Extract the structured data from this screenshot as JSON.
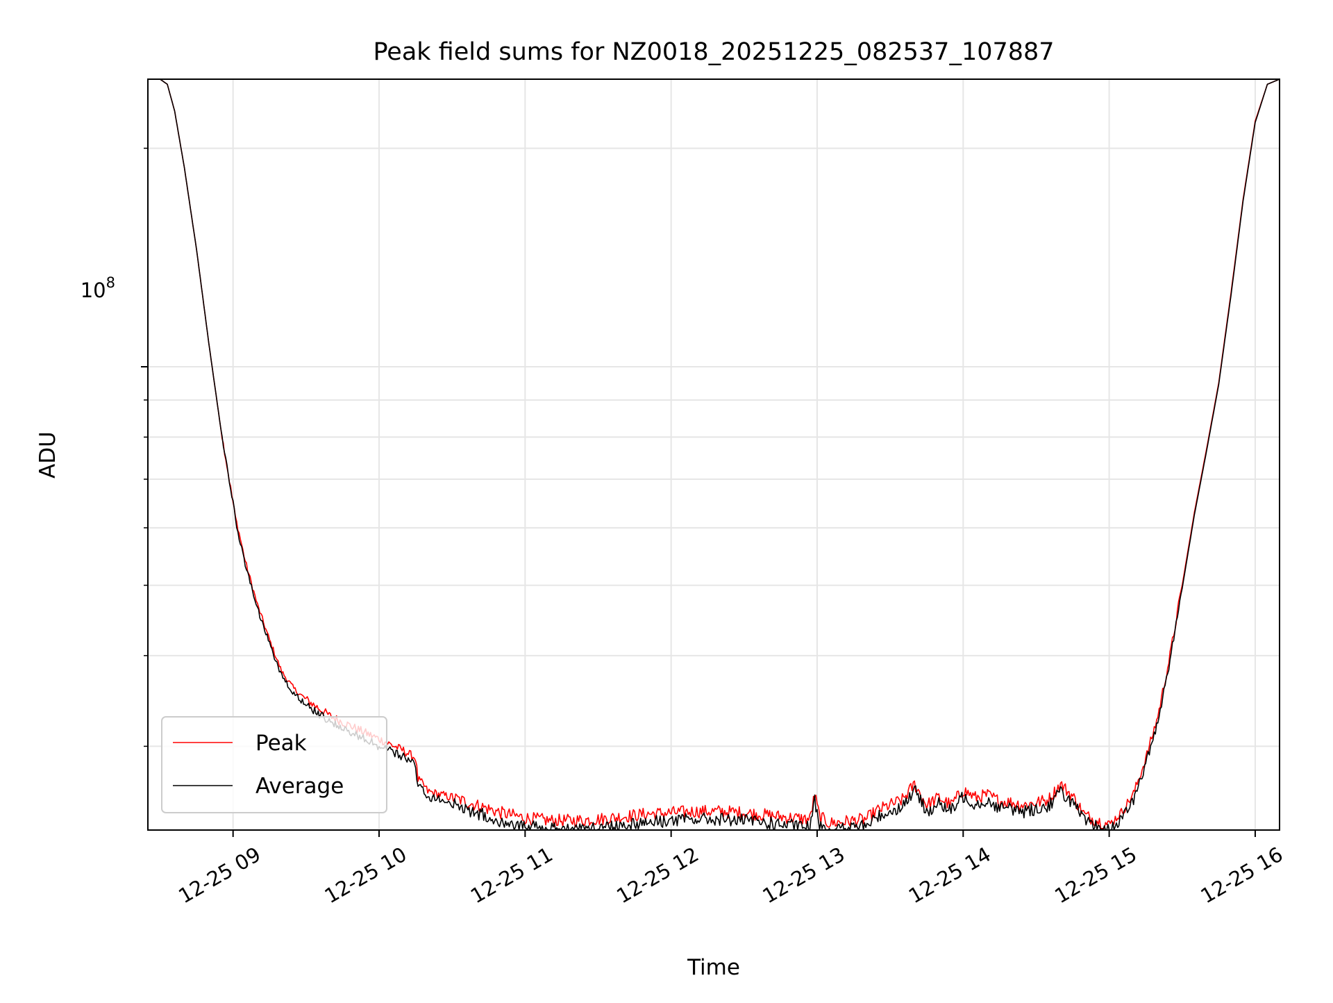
{
  "chart_data": {
    "type": "line",
    "title": "Peak field sums for NZ0018_20251225_082537_107887",
    "xlabel": "Time",
    "ylabel": "ADU",
    "yscale": "log",
    "grid": true,
    "legend_placement": "lower-left",
    "x_tick_labels": [
      "12-25 09",
      "12-25 10",
      "12-25 11",
      "12-25 12",
      "12-25 13",
      "12-25 14",
      "12-25 15",
      "12-25 16"
    ],
    "x_ticks": [
      "2025-12-25 09:00",
      "2025-12-25 10:00",
      "2025-12-25 11:00",
      "2025-12-25 12:00",
      "2025-12-25 13:00",
      "2025-12-25 14:00",
      "2025-12-25 15:00",
      "2025-12-25 16:00"
    ],
    "y_tick_label": {
      "base": "10",
      "exp": "8"
    },
    "xlim": [
      "2025-12-25 08:25",
      "2025-12-25 16:10"
    ],
    "ylim": [
      23000000,
      249000000
    ],
    "y_minor_ticks": [
      30000000,
      40000000,
      50000000,
      60000000,
      70000000,
      80000000,
      90000000,
      200000000
    ],
    "series": [
      {
        "name": "Peak",
        "color": "#ff0000",
        "x": [
          "08:25",
          "08:30",
          "08:33",
          "08:36",
          "08:40",
          "08:45",
          "08:50",
          "08:55",
          "09:00",
          "09:01",
          "09:02",
          "09:05",
          "09:10",
          "09:15",
          "09:20",
          "09:25",
          "09:30",
          "09:40",
          "09:50",
          "10:00",
          "10:10",
          "10:15",
          "10:16",
          "10:18",
          "10:20",
          "10:30",
          "10:40",
          "10:50",
          "11:00",
          "11:10",
          "11:20",
          "11:30",
          "11:40",
          "11:50",
          "12:00",
          "12:10",
          "12:20",
          "12:30",
          "12:40",
          "12:50",
          "12:57",
          "12:59",
          "13:01",
          "13:05",
          "13:10",
          "13:15",
          "13:20",
          "13:25",
          "13:30",
          "13:35",
          "13:40",
          "13:45",
          "13:50",
          "13:55",
          "14:00",
          "14:05",
          "14:10",
          "14:15",
          "14:20",
          "14:25",
          "14:30",
          "14:35",
          "14:40",
          "14:45",
          "14:50",
          "14:55",
          "15:00",
          "15:05",
          "15:10",
          "15:15",
          "15:20",
          "15:25",
          "15:30",
          "15:35",
          "15:40",
          "15:45",
          "15:50",
          "15:55",
          "16:00",
          "16:05",
          "16:10"
        ],
        "y": [
          249000000,
          249000000,
          245000000,
          225000000,
          188000000,
          145000000,
          108000000,
          82000000,
          65000000,
          62000000,
          60000000,
          54000000,
          47000000,
          42000000,
          38000000,
          36000000,
          34800000,
          33000000,
          31800000,
          30700000,
          29600000,
          28900000,
          27000000,
          26600000,
          26000000,
          25500000,
          24900000,
          24300000,
          23900000,
          23700000,
          23700000,
          23800000,
          24000000,
          24200000,
          24300000,
          24400000,
          24400000,
          24300000,
          24100000,
          23900000,
          23800000,
          25700000,
          24000000,
          23500000,
          23600000,
          23700000,
          23800000,
          24500000,
          24900000,
          25300000,
          26600000,
          24900000,
          25500000,
          24900000,
          26100000,
          25500000,
          25700000,
          25200000,
          25100000,
          24900000,
          25100000,
          25300000,
          26600000,
          25600000,
          24100000,
          23700000,
          23400000,
          24300000,
          25800000,
          28800000,
          33000000,
          40000000,
          50000000,
          63000000,
          77000000,
          95000000,
          126000000,
          170000000,
          218000000,
          245000000,
          249000000
        ]
      },
      {
        "name": "Average",
        "color": "#000000",
        "x": [
          "08:25",
          "08:30",
          "08:33",
          "08:36",
          "08:40",
          "08:45",
          "08:50",
          "08:55",
          "09:00",
          "09:01",
          "09:02",
          "09:05",
          "09:10",
          "09:15",
          "09:20",
          "09:25",
          "09:30",
          "09:40",
          "09:50",
          "10:00",
          "10:10",
          "10:15",
          "10:16",
          "10:18",
          "10:20",
          "10:30",
          "10:40",
          "10:50",
          "11:00",
          "11:10",
          "11:20",
          "11:30",
          "11:40",
          "11:50",
          "12:00",
          "12:10",
          "12:20",
          "12:30",
          "12:40",
          "12:50",
          "12:57",
          "12:59",
          "13:01",
          "13:05",
          "13:10",
          "13:15",
          "13:20",
          "13:25",
          "13:30",
          "13:35",
          "13:40",
          "13:45",
          "13:50",
          "13:55",
          "14:00",
          "14:05",
          "14:10",
          "14:15",
          "14:20",
          "14:25",
          "14:30",
          "14:35",
          "14:40",
          "14:45",
          "14:50",
          "14:55",
          "15:00",
          "15:05",
          "15:10",
          "15:15",
          "15:20",
          "15:25",
          "15:30",
          "15:35",
          "15:40",
          "15:45",
          "15:50",
          "15:55",
          "16:00",
          "16:05",
          "16:10"
        ],
        "y": [
          249000000,
          249000000,
          245000000,
          225000000,
          188000000,
          145000000,
          108000000,
          82000000,
          65000000,
          62000000,
          59000000,
          53500000,
          46500000,
          41500000,
          37500000,
          35500000,
          34200000,
          32400000,
          31200000,
          30000000,
          29000000,
          28200000,
          26500000,
          26200000,
          25600000,
          25000000,
          24300000,
          23700000,
          23300000,
          23100000,
          23100000,
          23200000,
          23400000,
          23600000,
          23700000,
          23800000,
          23800000,
          23700000,
          23500000,
          23300000,
          23200000,
          25200000,
          23500000,
          23000000,
          23100000,
          23200000,
          23300000,
          24000000,
          24400000,
          24800000,
          26100000,
          24400000,
          25000000,
          24400000,
          25600000,
          25000000,
          25200000,
          24700000,
          24600000,
          24400000,
          24600000,
          24800000,
          26000000,
          25100000,
          23600000,
          23200000,
          23000000,
          23800000,
          25300000,
          28300000,
          32500000,
          39500000,
          49500000,
          62500000,
          76500000,
          94500000,
          125000000,
          169000000,
          217000000,
          245000000,
          249000000
        ]
      }
    ]
  }
}
